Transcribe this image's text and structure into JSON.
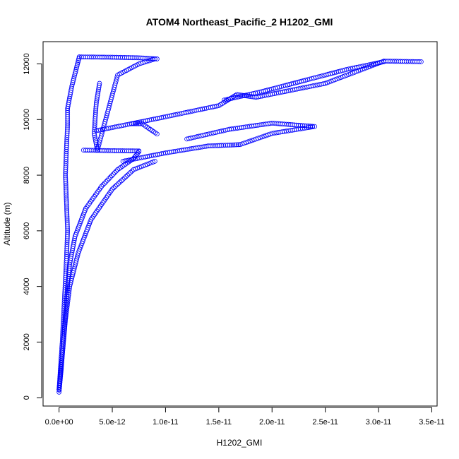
{
  "chart_data": {
    "type": "scatter",
    "title": "ATOM4 Northeast_Pacific_2 H1202_GMI",
    "xlabel": "H1202_GMI",
    "ylabel": "Altitude (m)",
    "xlim": [
      -1.5e-12,
      3.55e-11
    ],
    "ylim": [
      -300,
      12800
    ],
    "x_ticks": [
      0,
      5e-12,
      1e-11,
      1.5e-11,
      2e-11,
      2.5e-11,
      3e-11,
      3.5e-11
    ],
    "x_tick_labels": [
      "0.0e+00",
      "5.0e-12",
      "1.0e-11",
      "1.5e-11",
      "2.0e-11",
      "2.5e-11",
      "3.0e-11",
      "3.5e-11"
    ],
    "y_ticks": [
      0,
      2000,
      4000,
      6000,
      8000,
      10000,
      12000
    ],
    "y_tick_labels": [
      "0",
      "2000",
      "4000",
      "6000",
      "8000",
      "10000",
      "12000"
    ],
    "marker": "open-circle",
    "color": "#0000ff",
    "grid": false,
    "series": [
      {
        "x": [
          0.0,
          2e-13,
          4e-13,
          6e-13,
          8e-13,
          1e-12,
          1.5e-12,
          2.5e-12,
          4e-12,
          5.5e-12,
          7e-12,
          7.5e-12
        ],
        "y": [
          200,
          1000,
          2000,
          3000,
          4000,
          4800,
          5800,
          6800,
          7600,
          8200,
          8600,
          8850
        ]
      },
      {
        "x": [
          2.3e-12,
          5e-12,
          7.5e-12
        ],
        "y": [
          8900,
          8880,
          8870
        ]
      },
      {
        "x": [
          0.0,
          3e-13,
          6e-13,
          1e-12,
          1.8e-12,
          3e-12,
          5e-12,
          7e-12,
          9e-12
        ],
        "y": [
          300,
          1500,
          2800,
          4000,
          5200,
          6400,
          7500,
          8200,
          8500
        ]
      },
      {
        "x": [
          0.0,
          3e-13,
          5e-13,
          7e-13,
          8e-13,
          7e-13,
          6e-13,
          7e-13,
          8e-13,
          8e-13
        ],
        "y": [
          300,
          2000,
          3500,
          5000,
          6000,
          7000,
          8000,
          9000,
          9800,
          10400
        ]
      },
      {
        "x": [
          8e-13,
          1.2e-12,
          1.6e-12,
          1.9e-12
        ],
        "y": [
          10400,
          11200,
          11800,
          12250
        ]
      },
      {
        "x": [
          1.9e-12,
          5e-12,
          7.5e-12,
          9.2e-12
        ],
        "y": [
          12250,
          12240,
          12220,
          12180
        ]
      },
      {
        "x": [
          3.8e-12,
          3.5e-12,
          3.4e-12,
          3.3e-12,
          3.6e-12,
          5.5e-12,
          7.5e-12,
          9e-12
        ],
        "y": [
          11300,
          10600,
          10100,
          9500,
          8900,
          11600,
          12000,
          12180
        ]
      },
      {
        "x": [
          3.5e-12,
          6.8e-12,
          7.8e-12,
          9.2e-12
        ],
        "y": [
          9600,
          9850,
          9850,
          9480
        ]
      },
      {
        "x": [
          6.8e-12,
          1e-11,
          1.5e-11,
          1.67e-11,
          1.85e-11
        ],
        "y": [
          9850,
          10100,
          10500,
          10900,
          10800
        ]
      },
      {
        "x": [
          1.85e-11,
          2.5e-11,
          3.05e-11,
          3.4e-11
        ],
        "y": [
          10800,
          11300,
          12100,
          12080
        ]
      },
      {
        "x": [
          3.05e-11,
          2.7e-11,
          2.2e-11,
          1.9e-11,
          1.55e-11
        ],
        "y": [
          12080,
          11800,
          11300,
          11000,
          10700
        ]
      },
      {
        "x": [
          6e-12,
          1e-11,
          1.4e-11,
          1.6e-11,
          1.7e-11
        ],
        "y": [
          8500,
          8800,
          9050,
          9080,
          9100
        ]
      },
      {
        "x": [
          1.7e-11,
          2e-11,
          2.4e-11,
          2e-11,
          1.6e-11,
          1.2e-11
        ],
        "y": [
          9100,
          9500,
          9750,
          9870,
          9650,
          9300
        ]
      }
    ]
  }
}
